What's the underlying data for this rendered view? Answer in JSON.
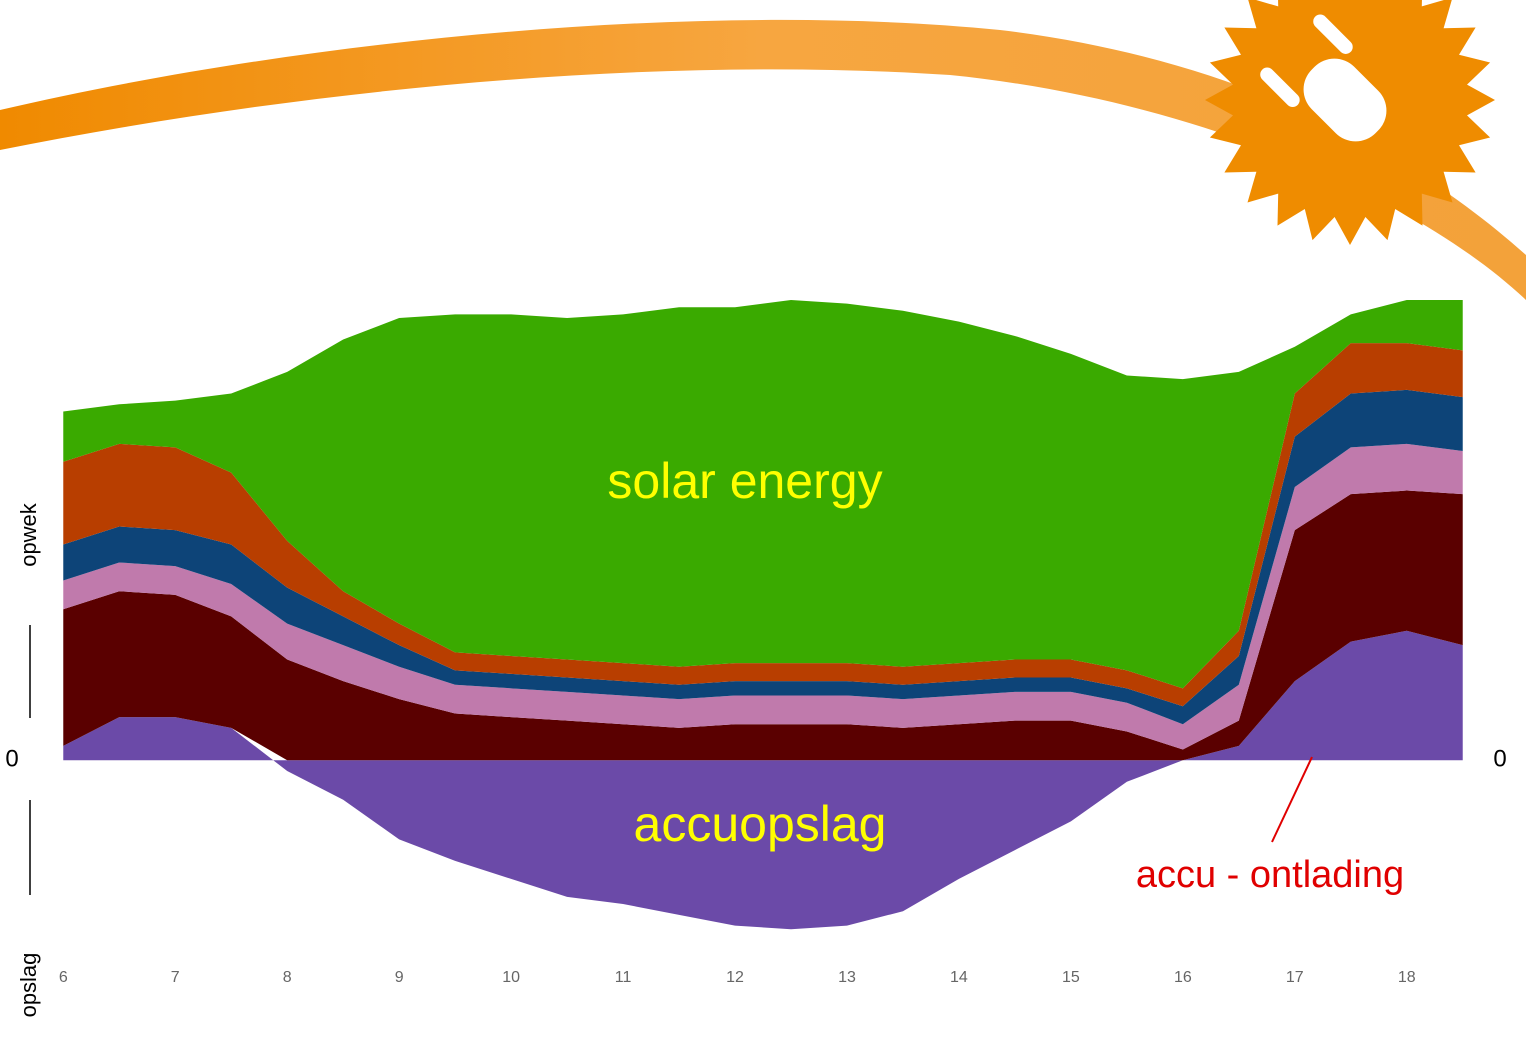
{
  "chart_data": {
    "type": "stacked_area",
    "y_label_top": "opwek",
    "y_label_bottom": "opslag",
    "annotations": [
      "solar energy",
      "accuopslag",
      "accu - ontlading"
    ],
    "x": [
      6,
      6.5,
      7,
      7.5,
      8,
      8.5,
      9,
      9.5,
      10,
      10.5,
      11,
      11.5,
      12,
      12.5,
      13,
      13.5,
      14,
      14.5,
      15,
      15.5,
      16,
      16.5,
      17,
      17.5,
      18,
      18.5
    ],
    "xlim": [
      5.81,
      18.69
    ],
    "xticks": [
      6,
      7,
      8,
      9,
      10,
      11,
      12,
      13,
      14,
      15,
      16,
      17,
      18
    ],
    "ylim": [
      -5,
      12.8
    ],
    "yticks": [
      0
    ],
    "series": [
      {
        "color": "#6b4aa8",
        "values": [
          0.4,
          1.2,
          1.2,
          0.9,
          -0.3,
          -1.1,
          -2.2,
          -2.8,
          -3.3,
          -3.8,
          -4.0,
          -4.3,
          -4.6,
          -4.7,
          -4.6,
          -4.2,
          -3.3,
          -2.5,
          -1.7,
          -0.6,
          0,
          0.4,
          2.2,
          3.3,
          3.6,
          3.2
        ]
      },
      {
        "color": "#5a0000",
        "values": [
          3.8,
          3.5,
          3.4,
          3.1,
          2.8,
          2.2,
          1.7,
          1.3,
          1.2,
          1.1,
          1.0,
          0.9,
          1.0,
          1.0,
          1.0,
          0.9,
          1.0,
          1.1,
          1.1,
          0.8,
          0.3,
          0.7,
          4.2,
          4.1,
          3.9,
          4.2
        ]
      },
      {
        "color": "#c07aac",
        "values": [
          0.8,
          0.8,
          0.8,
          0.9,
          1.0,
          1.0,
          0.9,
          0.8,
          0.8,
          0.8,
          0.8,
          0.8,
          0.8,
          0.8,
          0.8,
          0.8,
          0.8,
          0.8,
          0.8,
          0.8,
          0.7,
          1.0,
          1.2,
          1.3,
          1.3,
          1.2
        ]
      },
      {
        "color": "#0d4478",
        "values": [
          1.0,
          1.0,
          1.0,
          1.1,
          1.0,
          0.8,
          0.6,
          0.4,
          0.4,
          0.4,
          0.4,
          0.4,
          0.4,
          0.4,
          0.4,
          0.4,
          0.4,
          0.4,
          0.4,
          0.4,
          0.5,
          0.8,
          1.4,
          1.5,
          1.5,
          1.5
        ]
      },
      {
        "color": "#b83e00",
        "values": [
          2.3,
          2.3,
          2.3,
          2.0,
          1.3,
          0.7,
          0.6,
          0.5,
          0.5,
          0.5,
          0.5,
          0.5,
          0.5,
          0.5,
          0.5,
          0.5,
          0.5,
          0.5,
          0.5,
          0.5,
          0.5,
          0.7,
          1.2,
          1.4,
          1.3,
          1.3
        ]
      },
      {
        "color": "#3aaa00",
        "values": [
          1.4,
          1.1,
          1.3,
          2.2,
          4.7,
          7.0,
          8.5,
          9.4,
          9.5,
          9.5,
          9.7,
          10.0,
          9.9,
          10.1,
          10.0,
          9.9,
          9.5,
          9.0,
          8.5,
          8.2,
          8.6,
          7.2,
          1.3,
          0.8,
          1.2,
          1.4
        ]
      }
    ]
  }
}
